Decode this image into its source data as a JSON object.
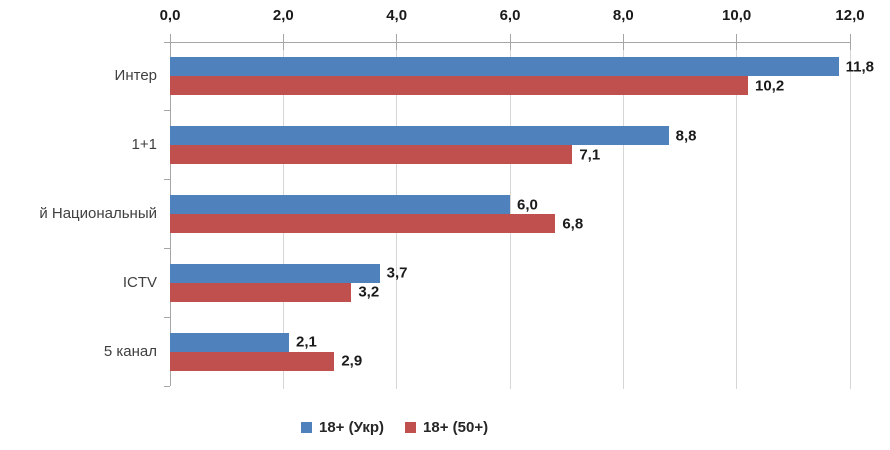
{
  "chart_data": {
    "type": "bar",
    "orientation": "horizontal",
    "title": "",
    "categories": [
      "Интер",
      "1+1",
      "й Национальный",
      "ICTV",
      "5 канал"
    ],
    "series": [
      {
        "name": "18+ (Укр)",
        "color": "#4f81bd",
        "values": [
          11.8,
          8.8,
          6.0,
          3.7,
          2.1
        ],
        "data_labels": [
          "11,8",
          "8,8",
          "6,0",
          "3,7",
          "2,1"
        ]
      },
      {
        "name": "18+ (50+)",
        "color": "#c0504d",
        "values": [
          10.2,
          7.1,
          6.8,
          3.2,
          2.9
        ],
        "data_labels": [
          "10,2",
          "7,1",
          "6,8",
          "3,2",
          "2,9"
        ]
      }
    ],
    "x_axis": {
      "position": "top",
      "min": 0,
      "max": 12,
      "tick_step": 2,
      "tick_labels": [
        "0,0",
        "2,0",
        "4,0",
        "6,0",
        "8,0",
        "10,0",
        "12,0"
      ]
    },
    "grid": true,
    "legend_position": "bottom",
    "colors": {
      "gridline": "#d6d6d6",
      "axis": "#a6a6a6",
      "tick_label_text": "#1a1a1a",
      "category_label_text": "#3f3f3f",
      "data_label_text": "#1a1a1a"
    }
  }
}
